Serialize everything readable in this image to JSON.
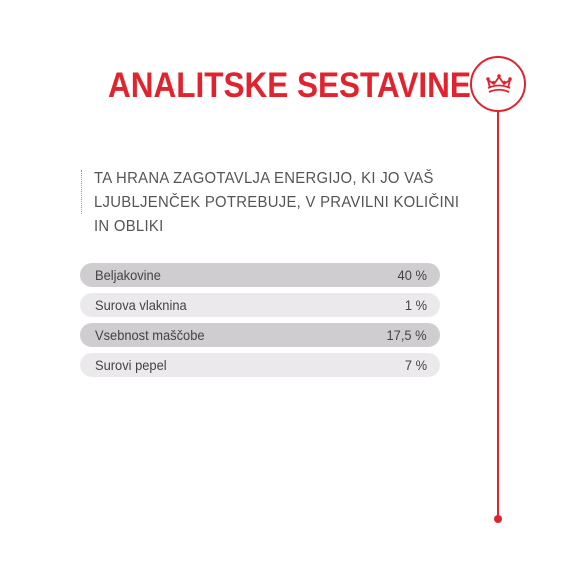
{
  "header": {
    "title": "ANALITSKE SESTAVINE",
    "brand_icon": "crown-icon",
    "accent_color": "#e1232e"
  },
  "intro": {
    "text": "TA HRANA ZAGOTAVLJA ENERGIJO, KI JO VAŠ LJUBLJENČEK POTREBUJE, V PRAVILNI KOLIČINI IN OBLIKI"
  },
  "table": {
    "rows": [
      {
        "label": "Beljakovine",
        "value": "40 %"
      },
      {
        "label": "Surova vlaknina",
        "value": "1 %"
      },
      {
        "label": "Vsebnost maščobe",
        "value": "17,5 %"
      },
      {
        "label": "Surovi pepel",
        "value": "7 %"
      }
    ],
    "row_colors": [
      "#cfcdcf",
      "#ebe9ec"
    ]
  }
}
